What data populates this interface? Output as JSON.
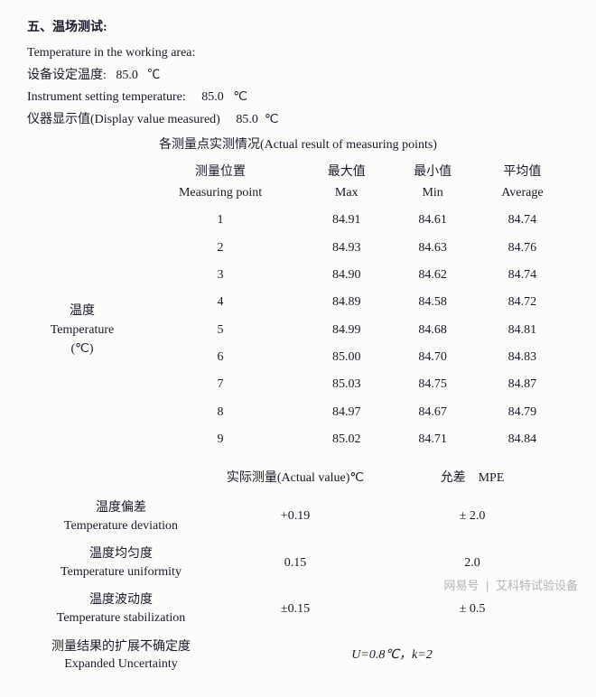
{
  "section_title": "五、温场测试:",
  "header_lines": {
    "l1": "Temperature in the working area:",
    "l2_label": "设备设定温度:",
    "l2_value": "85.0",
    "l2_unit": "℃",
    "l3_label": "Instrument setting temperature:",
    "l3_value": "85.0",
    "l3_unit": "℃",
    "l4_label": "仪器显示值(Display value measured)",
    "l4_value": "85.0",
    "l4_unit": "℃"
  },
  "table_caption": "各测量点实测情况(Actual result of measuring points)",
  "columns": {
    "point_zh": "测量位置",
    "point_en": "Measuring point",
    "max_zh": "最大值",
    "max_en": "Max",
    "min_zh": "最小值",
    "min_en": "Min",
    "avg_zh": "平均值",
    "avg_en": "Average"
  },
  "row_group_label": {
    "zh": "温度",
    "en": "Temperature",
    "unit": "(℃)"
  },
  "rows": [
    {
      "pt": "1",
      "max": "84.91",
      "min": "84.61",
      "avg": "84.74"
    },
    {
      "pt": "2",
      "max": "84.93",
      "min": "84.63",
      "avg": "84.76"
    },
    {
      "pt": "3",
      "max": "84.90",
      "min": "84.62",
      "avg": "84.74"
    },
    {
      "pt": "4",
      "max": "84.89",
      "min": "84.58",
      "avg": "84.72"
    },
    {
      "pt": "5",
      "max": "84.99",
      "min": "84.68",
      "avg": "84.81"
    },
    {
      "pt": "6",
      "max": "85.00",
      "min": "84.70",
      "avg": "84.83"
    },
    {
      "pt": "7",
      "max": "85.03",
      "min": "84.75",
      "avg": "84.87"
    },
    {
      "pt": "8",
      "max": "84.97",
      "min": "84.67",
      "avg": "84.79"
    },
    {
      "pt": "9",
      "max": "85.02",
      "min": "84.71",
      "avg": "84.84"
    }
  ],
  "summary": {
    "actual_header": "实际测量(Actual value)℃",
    "mpe_header": "允差　MPE",
    "dev_zh": "温度偏差",
    "dev_en": "Temperature deviation",
    "dev_val": "+0.19",
    "dev_mpe": "± 2.0",
    "uni_zh": "温度均匀度",
    "uni_en": "Temperature uniformity",
    "uni_val": "0.15",
    "uni_mpe": "2.0",
    "stab_zh": "温度波动度",
    "stab_en": "Temperature stabilization",
    "stab_val": "±0.15",
    "stab_mpe": "± 0.5",
    "uncert_zh": "测量结果的扩展不确定度",
    "uncert_en": "Expanded Uncertainty",
    "uncert_val": "U=0.8℃，k=2"
  },
  "watermark": {
    "left": "网易号",
    "right": "艾科特试验设备"
  }
}
